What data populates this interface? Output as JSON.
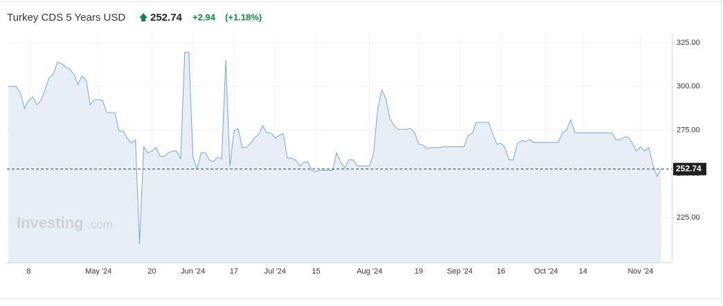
{
  "header": {
    "title": "Turkey CDS 5 Years USD",
    "price": "252.74",
    "change": "+2.94",
    "change_pct": "(+1.18%)"
  },
  "watermark": [
    "Investing",
    ".com"
  ],
  "chart_data": {
    "type": "area",
    "color": "#6fa8d6",
    "fill": "#e7eef6",
    "grid": true,
    "last_line": true,
    "x": [
      0,
      1,
      2,
      3,
      4,
      5,
      6,
      7,
      8,
      9,
      10,
      11,
      12,
      13,
      14,
      15,
      16,
      17,
      18,
      19,
      20,
      21,
      22,
      23,
      24,
      25,
      26,
      27,
      28,
      29,
      30,
      31,
      32,
      33,
      34,
      35,
      36,
      37,
      38,
      39,
      40,
      41,
      42,
      43,
      44,
      45,
      46,
      47,
      48,
      49,
      50,
      51,
      52,
      53,
      54,
      55,
      56,
      57,
      58,
      59,
      60,
      61,
      62,
      63,
      64,
      65,
      66,
      67,
      68,
      69,
      70,
      71,
      72,
      73,
      74,
      75,
      76,
      77,
      78,
      79,
      80,
      81,
      82,
      83,
      84,
      85,
      86,
      87,
      88,
      89,
      90,
      91,
      92,
      93,
      94,
      95,
      96,
      97,
      98,
      99,
      100,
      101,
      102,
      103,
      104,
      105,
      106,
      107,
      108,
      109,
      110,
      111,
      112,
      113,
      114,
      115,
      116,
      117,
      118,
      119,
      120,
      121,
      122,
      123,
      124,
      125,
      126,
      127,
      128,
      129,
      130,
      131,
      132,
      133,
      134,
      135,
      136,
      137,
      138,
      139,
      140,
      141,
      142,
      143,
      144,
      145,
      146,
      147,
      148,
      149,
      150,
      151,
      152,
      153,
      154,
      155,
      156,
      157,
      158,
      159
    ],
    "series": [
      {
        "name": "Turkey CDS 5 Years USD",
        "color": "#6fa8d6",
        "values": [
          300.1,
          300,
          300,
          296,
          287.5,
          292,
          294,
          289.5,
          292,
          298,
          305,
          307,
          314,
          313,
          311,
          310,
          307,
          301,
          306,
          303.5,
          289.5,
          292.5,
          292.5,
          292,
          285,
          285,
          285,
          274.5,
          274.5,
          270.5,
          267.5,
          269.5,
          210,
          265.5,
          262,
          263,
          265,
          260,
          260,
          262,
          263,
          263,
          258.5,
          319.5,
          319.5,
          259.5,
          253,
          262,
          262,
          258,
          257,
          259.5,
          258.5,
          315,
          254.5,
          274.5,
          276,
          265,
          265,
          267.5,
          270.5,
          272.5,
          277.5,
          273.5,
          273.5,
          270.5,
          272,
          273,
          259,
          259,
          258,
          254.5,
          256.5,
          257,
          251.5,
          251.5,
          252,
          252,
          252,
          252,
          262,
          256.5,
          253.5,
          258,
          258,
          254.5,
          254.5,
          254.5,
          254.5,
          262,
          287,
          298,
          293,
          281.5,
          277.5,
          275.5,
          275.5,
          275.5,
          276,
          273.5,
          267,
          266.5,
          264.5,
          265,
          265,
          265,
          265.5,
          265.5,
          265.5,
          265.5,
          265.5,
          265.5,
          272,
          273,
          279.5,
          279.5,
          279.5,
          279.5,
          273,
          267,
          267.5,
          265,
          258,
          258,
          267.5,
          269,
          268.5,
          269.5,
          268,
          268,
          268,
          268,
          268,
          268,
          268,
          273.5,
          275,
          281,
          273.5,
          273.5,
          273.5,
          273.5,
          273.5,
          273.5,
          273.5,
          273.5,
          273.5,
          273.5,
          269.5,
          269.5,
          271,
          271,
          267.5,
          263,
          265.5,
          263,
          265,
          255.5,
          248.5,
          252.74
        ]
      }
    ],
    "xlim": [
      -0.3,
      161.6
    ],
    "xticks": [
      {
        "value": 5,
        "label": "8"
      },
      {
        "value": 22,
        "label": "May '24"
      },
      {
        "value": 35,
        "label": "20"
      },
      {
        "value": 45,
        "label": "Jun '24"
      },
      {
        "value": 55,
        "label": "17"
      },
      {
        "value": 65,
        "label": "Jul '24"
      },
      {
        "value": 75,
        "label": "15"
      },
      {
        "value": 88,
        "label": "Aug '24"
      },
      {
        "value": 100,
        "label": "19"
      },
      {
        "value": 110,
        "label": "Sep '24"
      },
      {
        "value": 120,
        "label": "16"
      },
      {
        "value": 131,
        "label": "Oct '24"
      },
      {
        "value": 140,
        "label": "14"
      },
      {
        "value": 154,
        "label": "Nov '24"
      }
    ],
    "ylim": [
      199.3,
      330.5
    ],
    "yticks": [
      {
        "value": 225,
        "label": "225.00"
      },
      {
        "value": 250,
        "label": "250.00"
      },
      {
        "value": 275,
        "label": "275.00"
      },
      {
        "value": 300,
        "label": "300.00"
      },
      {
        "value": 325,
        "label": "325.00"
      }
    ]
  }
}
